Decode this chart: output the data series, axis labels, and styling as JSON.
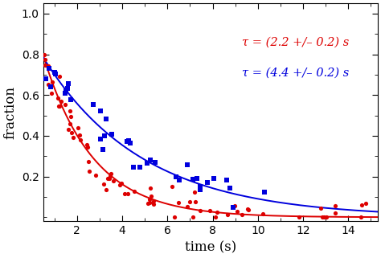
{
  "xlabel": "time (s)",
  "ylabel": "fraction",
  "xlim": [
    0.5,
    15.3
  ],
  "ylim": [
    -0.02,
    1.05
  ],
  "xticks": [
    2,
    4,
    6,
    8,
    10,
    12,
    14
  ],
  "yticks": [
    0.2,
    0.4,
    0.6,
    0.8,
    1.0
  ],
  "red_tau": 2.2,
  "blue_tau": 4.4,
  "red_amplitude": 1.0,
  "blue_amplitude": 0.88,
  "red_color": "#dd0000",
  "blue_color": "#0000dd",
  "annotation_red": "τ = (2.2 +/– 0.2) s",
  "annotation_blue": "τ = (4.4 +/– 0.2) s",
  "figsize": [
    4.74,
    3.21
  ],
  "dpi": 100,
  "background_color": "#ffffff"
}
